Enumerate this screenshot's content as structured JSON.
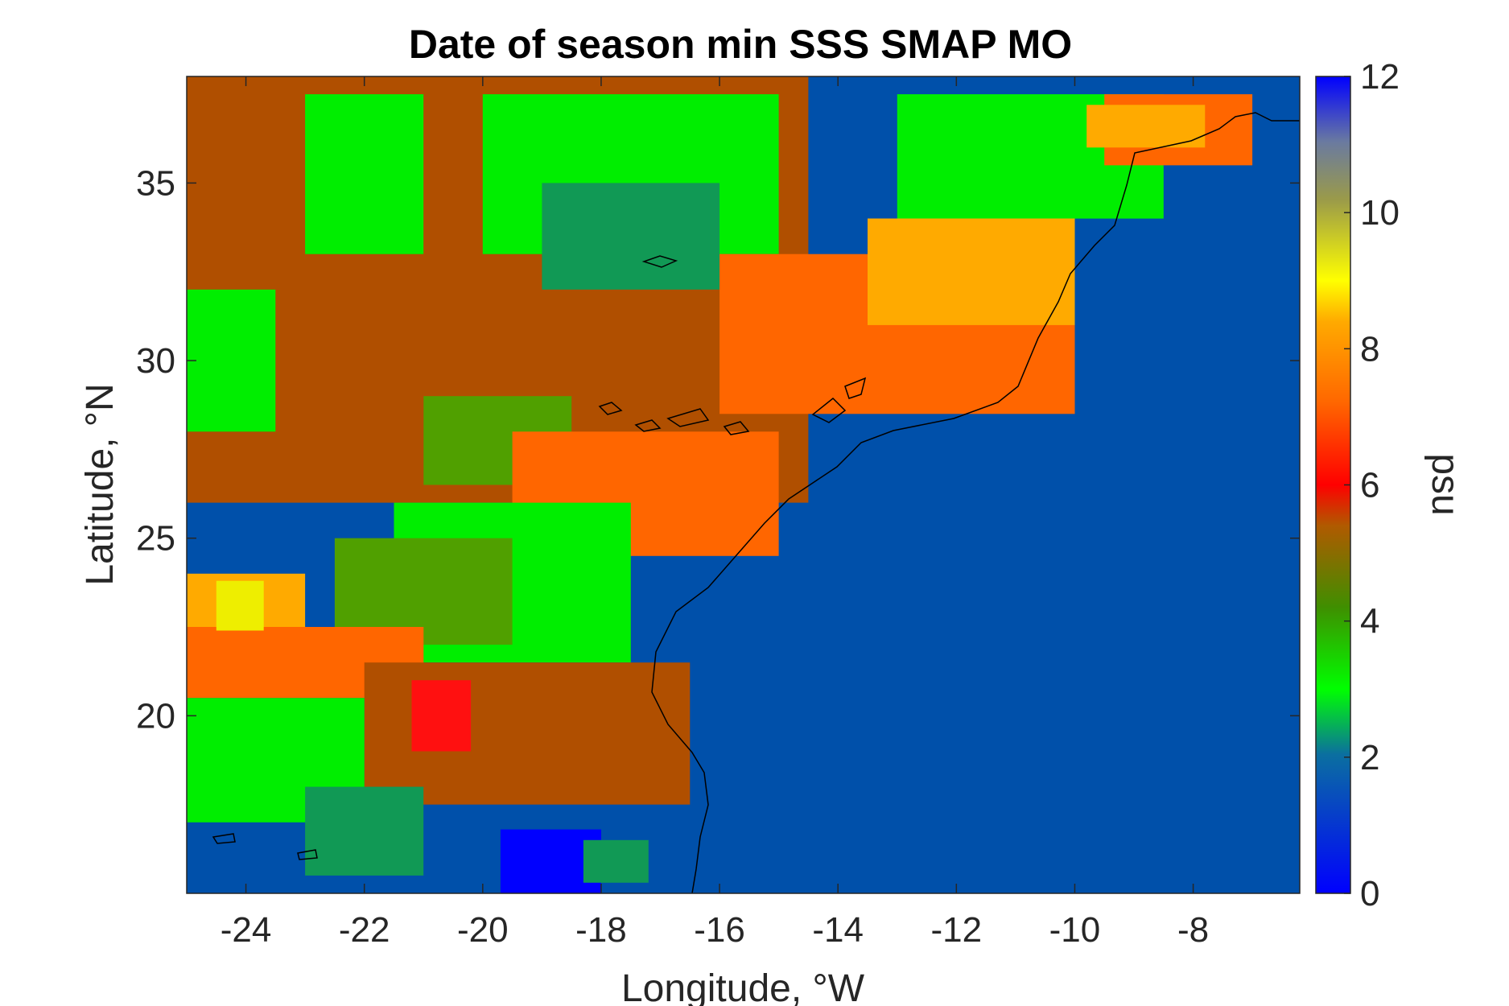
{
  "chart_data": {
    "type": "heatmap",
    "title": "Date of season min SSS SMAP MO",
    "xlabel": "Longitude, °W",
    "ylabel": "Latitude, °N",
    "colorbar_label": "psu",
    "xlim": [
      -25,
      -6.2
    ],
    "ylim": [
      15,
      38
    ],
    "clim": [
      0,
      12
    ],
    "x_ticks": [
      -24,
      -22,
      -20,
      -18,
      -16,
      -14,
      -12,
      -10,
      -8
    ],
    "x_tick_labels": [
      "-24",
      "-22",
      "-20",
      "-18",
      "-16",
      "-14",
      "-12",
      "-10",
      "-8"
    ],
    "y_ticks": [
      20,
      25,
      30,
      35
    ],
    "y_tick_labels": [
      "20",
      "25",
      "30",
      "35"
    ],
    "colorbar_ticks": [
      0,
      2,
      4,
      6,
      8,
      10,
      12
    ],
    "colorbar_tick_labels": [
      "0",
      "2",
      "4",
      "6",
      "8",
      "10",
      "12"
    ],
    "background_value": 1,
    "regions": [
      {
        "value": 5,
        "lon": [
          -25,
          -14.5
        ],
        "lat": [
          26,
          38
        ]
      },
      {
        "value": 3,
        "lon": [
          -23,
          -21
        ],
        "lat": [
          33,
          37.5
        ]
      },
      {
        "value": 3,
        "lon": [
          -20,
          -15
        ],
        "lat": [
          33,
          37.5
        ]
      },
      {
        "value": 2,
        "lon": [
          -19,
          -16
        ],
        "lat": [
          32,
          35
        ]
      },
      {
        "value": 3,
        "lon": [
          -13,
          -8.5
        ],
        "lat": [
          34,
          37.5
        ]
      },
      {
        "value": 3,
        "lon": [
          -25,
          -23.5
        ],
        "lat": [
          28,
          32
        ]
      },
      {
        "value": 4,
        "lon": [
          -21,
          -18.5
        ],
        "lat": [
          26.5,
          29
        ]
      },
      {
        "value": 7,
        "lon": [
          -16,
          -10
        ],
        "lat": [
          28.5,
          33
        ]
      },
      {
        "value": 8,
        "lon": [
          -13.5,
          -10
        ],
        "lat": [
          31,
          34
        ]
      },
      {
        "value": 7,
        "lon": [
          -9.5,
          -7
        ],
        "lat": [
          35.5,
          37.5
        ]
      },
      {
        "value": 8,
        "lon": [
          -9.8,
          -7.8
        ],
        "lat": [
          36,
          37.2
        ]
      },
      {
        "value": 7,
        "lon": [
          -19.5,
          -15
        ],
        "lat": [
          24.5,
          28
        ]
      },
      {
        "value": 3,
        "lon": [
          -21.5,
          -17.5
        ],
        "lat": [
          21.5,
          26
        ]
      },
      {
        "value": 4,
        "lon": [
          -22.5,
          -19.5
        ],
        "lat": [
          22,
          25
        ]
      },
      {
        "value": 7,
        "lon": [
          -25,
          -21
        ],
        "lat": [
          20.5,
          22.5
        ]
      },
      {
        "value": 5,
        "lon": [
          -22,
          -16.5
        ],
        "lat": [
          17.5,
          21.5
        ]
      },
      {
        "value": 6,
        "lon": [
          -21.2,
          -20.2
        ],
        "lat": [
          19,
          21
        ]
      },
      {
        "value": 3,
        "lon": [
          -25,
          -22
        ],
        "lat": [
          17,
          20.5
        ]
      },
      {
        "value": 2,
        "lon": [
          -23,
          -21
        ],
        "lat": [
          15.5,
          18
        ]
      },
      {
        "value": 8,
        "lon": [
          -25,
          -23
        ],
        "lat": [
          22.5,
          24
        ]
      },
      {
        "value": 9,
        "lon": [
          -24.5,
          -23.7
        ],
        "lat": [
          22.4,
          23.8
        ]
      },
      {
        "value": 0,
        "lon": [
          -19.7,
          -18
        ],
        "lat": [
          15,
          16.8
        ]
      },
      {
        "value": 2,
        "lon": [
          -18.3,
          -17.2
        ],
        "lat": [
          15.3,
          16.5
        ]
      }
    ]
  }
}
